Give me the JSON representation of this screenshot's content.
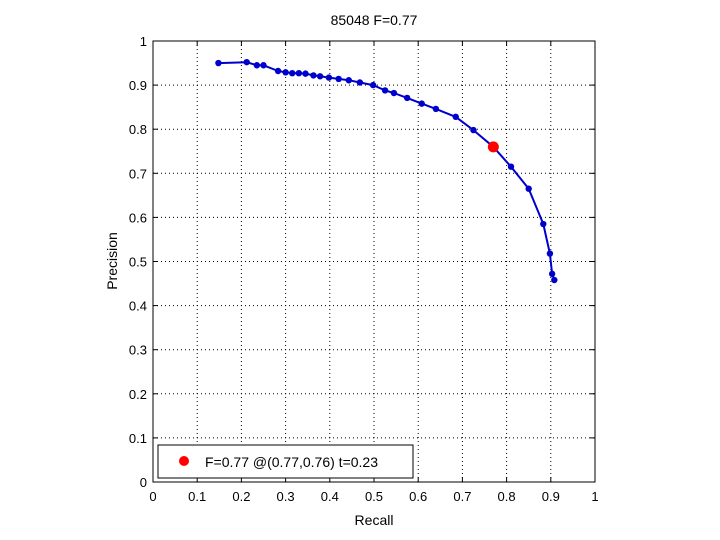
{
  "chart_data": {
    "type": "line",
    "title": "85048 F=0.77",
    "xlabel": "Recall",
    "ylabel": "Precision",
    "xlim": [
      0,
      1
    ],
    "ylim": [
      0,
      1
    ],
    "xticks": [
      "0",
      "0.1",
      "0.2",
      "0.3",
      "0.4",
      "0.5",
      "0.6",
      "0.7",
      "0.8",
      "0.9",
      "1"
    ],
    "yticks": [
      "0",
      "0.1",
      "0.2",
      "0.3",
      "0.4",
      "0.5",
      "0.6",
      "0.7",
      "0.8",
      "0.9",
      "1"
    ],
    "grid": true,
    "series": [
      {
        "color": "#0000cc",
        "marker": "dot",
        "points": [
          [
            0.148,
            0.95
          ],
          [
            0.212,
            0.952
          ],
          [
            0.235,
            0.945
          ],
          [
            0.25,
            0.945
          ],
          [
            0.283,
            0.932
          ],
          [
            0.3,
            0.929
          ],
          [
            0.315,
            0.927
          ],
          [
            0.33,
            0.927
          ],
          [
            0.345,
            0.926
          ],
          [
            0.363,
            0.922
          ],
          [
            0.378,
            0.92
          ],
          [
            0.398,
            0.917
          ],
          [
            0.42,
            0.914
          ],
          [
            0.443,
            0.911
          ],
          [
            0.468,
            0.906
          ],
          [
            0.498,
            0.9
          ],
          [
            0.525,
            0.888
          ],
          [
            0.545,
            0.882
          ],
          [
            0.575,
            0.871
          ],
          [
            0.608,
            0.858
          ],
          [
            0.64,
            0.846
          ],
          [
            0.685,
            0.828
          ],
          [
            0.725,
            0.798
          ],
          [
            0.77,
            0.76
          ],
          [
            0.81,
            0.715
          ],
          [
            0.85,
            0.665
          ],
          [
            0.883,
            0.585
          ],
          [
            0.898,
            0.518
          ],
          [
            0.903,
            0.472
          ],
          [
            0.908,
            0.458
          ]
        ]
      }
    ],
    "highlight": {
      "x": 0.77,
      "y": 0.76,
      "color": "#ff0000"
    },
    "legend": {
      "position": "bottom-left",
      "entries": [
        {
          "label": "F=0.77 @(0.77,0.76) t=0.23",
          "color": "#ff0000",
          "marker": "dot"
        }
      ]
    }
  }
}
